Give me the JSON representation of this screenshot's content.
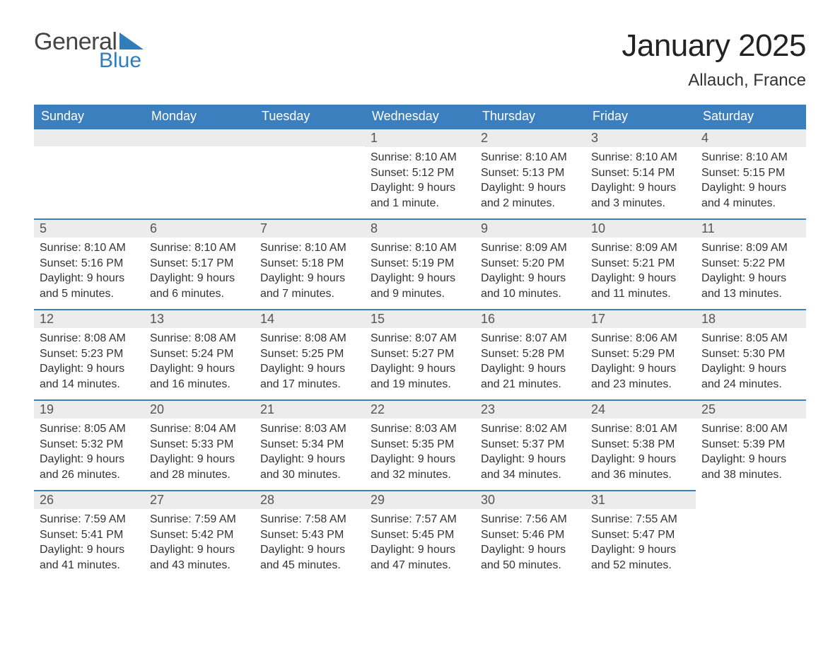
{
  "brand": {
    "general": "General",
    "blue": "Blue"
  },
  "title": "January 2025",
  "location": "Allauch, France",
  "colors": {
    "header_bg": "#3b7fbf",
    "header_text": "#ffffff",
    "daynum_bg": "#ececec",
    "daynum_border": "#3b7fbf",
    "body_bg": "#ffffff",
    "text": "#333333",
    "logo_blue": "#2f7dbd"
  },
  "typography": {
    "title_fontsize": 44,
    "location_fontsize": 24,
    "th_fontsize": 18,
    "cell_fontsize": 16
  },
  "weekdays": [
    "Sunday",
    "Monday",
    "Tuesday",
    "Wednesday",
    "Thursday",
    "Friday",
    "Saturday"
  ],
  "layout": {
    "first_weekday_index": 3,
    "days_in_month": 31,
    "rows": 5,
    "cols": 7
  },
  "days": [
    {
      "n": 1,
      "sr": "8:10 AM",
      "ss": "5:12 PM",
      "dl": "9 hours and 1 minute."
    },
    {
      "n": 2,
      "sr": "8:10 AM",
      "ss": "5:13 PM",
      "dl": "9 hours and 2 minutes."
    },
    {
      "n": 3,
      "sr": "8:10 AM",
      "ss": "5:14 PM",
      "dl": "9 hours and 3 minutes."
    },
    {
      "n": 4,
      "sr": "8:10 AM",
      "ss": "5:15 PM",
      "dl": "9 hours and 4 minutes."
    },
    {
      "n": 5,
      "sr": "8:10 AM",
      "ss": "5:16 PM",
      "dl": "9 hours and 5 minutes."
    },
    {
      "n": 6,
      "sr": "8:10 AM",
      "ss": "5:17 PM",
      "dl": "9 hours and 6 minutes."
    },
    {
      "n": 7,
      "sr": "8:10 AM",
      "ss": "5:18 PM",
      "dl": "9 hours and 7 minutes."
    },
    {
      "n": 8,
      "sr": "8:10 AM",
      "ss": "5:19 PM",
      "dl": "9 hours and 9 minutes."
    },
    {
      "n": 9,
      "sr": "8:09 AM",
      "ss": "5:20 PM",
      "dl": "9 hours and 10 minutes."
    },
    {
      "n": 10,
      "sr": "8:09 AM",
      "ss": "5:21 PM",
      "dl": "9 hours and 11 minutes."
    },
    {
      "n": 11,
      "sr": "8:09 AM",
      "ss": "5:22 PM",
      "dl": "9 hours and 13 minutes."
    },
    {
      "n": 12,
      "sr": "8:08 AM",
      "ss": "5:23 PM",
      "dl": "9 hours and 14 minutes."
    },
    {
      "n": 13,
      "sr": "8:08 AM",
      "ss": "5:24 PM",
      "dl": "9 hours and 16 minutes."
    },
    {
      "n": 14,
      "sr": "8:08 AM",
      "ss": "5:25 PM",
      "dl": "9 hours and 17 minutes."
    },
    {
      "n": 15,
      "sr": "8:07 AM",
      "ss": "5:27 PM",
      "dl": "9 hours and 19 minutes."
    },
    {
      "n": 16,
      "sr": "8:07 AM",
      "ss": "5:28 PM",
      "dl": "9 hours and 21 minutes."
    },
    {
      "n": 17,
      "sr": "8:06 AM",
      "ss": "5:29 PM",
      "dl": "9 hours and 23 minutes."
    },
    {
      "n": 18,
      "sr": "8:05 AM",
      "ss": "5:30 PM",
      "dl": "9 hours and 24 minutes."
    },
    {
      "n": 19,
      "sr": "8:05 AM",
      "ss": "5:32 PM",
      "dl": "9 hours and 26 minutes."
    },
    {
      "n": 20,
      "sr": "8:04 AM",
      "ss": "5:33 PM",
      "dl": "9 hours and 28 minutes."
    },
    {
      "n": 21,
      "sr": "8:03 AM",
      "ss": "5:34 PM",
      "dl": "9 hours and 30 minutes."
    },
    {
      "n": 22,
      "sr": "8:03 AM",
      "ss": "5:35 PM",
      "dl": "9 hours and 32 minutes."
    },
    {
      "n": 23,
      "sr": "8:02 AM",
      "ss": "5:37 PM",
      "dl": "9 hours and 34 minutes."
    },
    {
      "n": 24,
      "sr": "8:01 AM",
      "ss": "5:38 PM",
      "dl": "9 hours and 36 minutes."
    },
    {
      "n": 25,
      "sr": "8:00 AM",
      "ss": "5:39 PM",
      "dl": "9 hours and 38 minutes."
    },
    {
      "n": 26,
      "sr": "7:59 AM",
      "ss": "5:41 PM",
      "dl": "9 hours and 41 minutes."
    },
    {
      "n": 27,
      "sr": "7:59 AM",
      "ss": "5:42 PM",
      "dl": "9 hours and 43 minutes."
    },
    {
      "n": 28,
      "sr": "7:58 AM",
      "ss": "5:43 PM",
      "dl": "9 hours and 45 minutes."
    },
    {
      "n": 29,
      "sr": "7:57 AM",
      "ss": "5:45 PM",
      "dl": "9 hours and 47 minutes."
    },
    {
      "n": 30,
      "sr": "7:56 AM",
      "ss": "5:46 PM",
      "dl": "9 hours and 50 minutes."
    },
    {
      "n": 31,
      "sr": "7:55 AM",
      "ss": "5:47 PM",
      "dl": "9 hours and 52 minutes."
    }
  ],
  "labels": {
    "sunrise": "Sunrise: ",
    "sunset": "Sunset: ",
    "daylight": "Daylight: "
  }
}
